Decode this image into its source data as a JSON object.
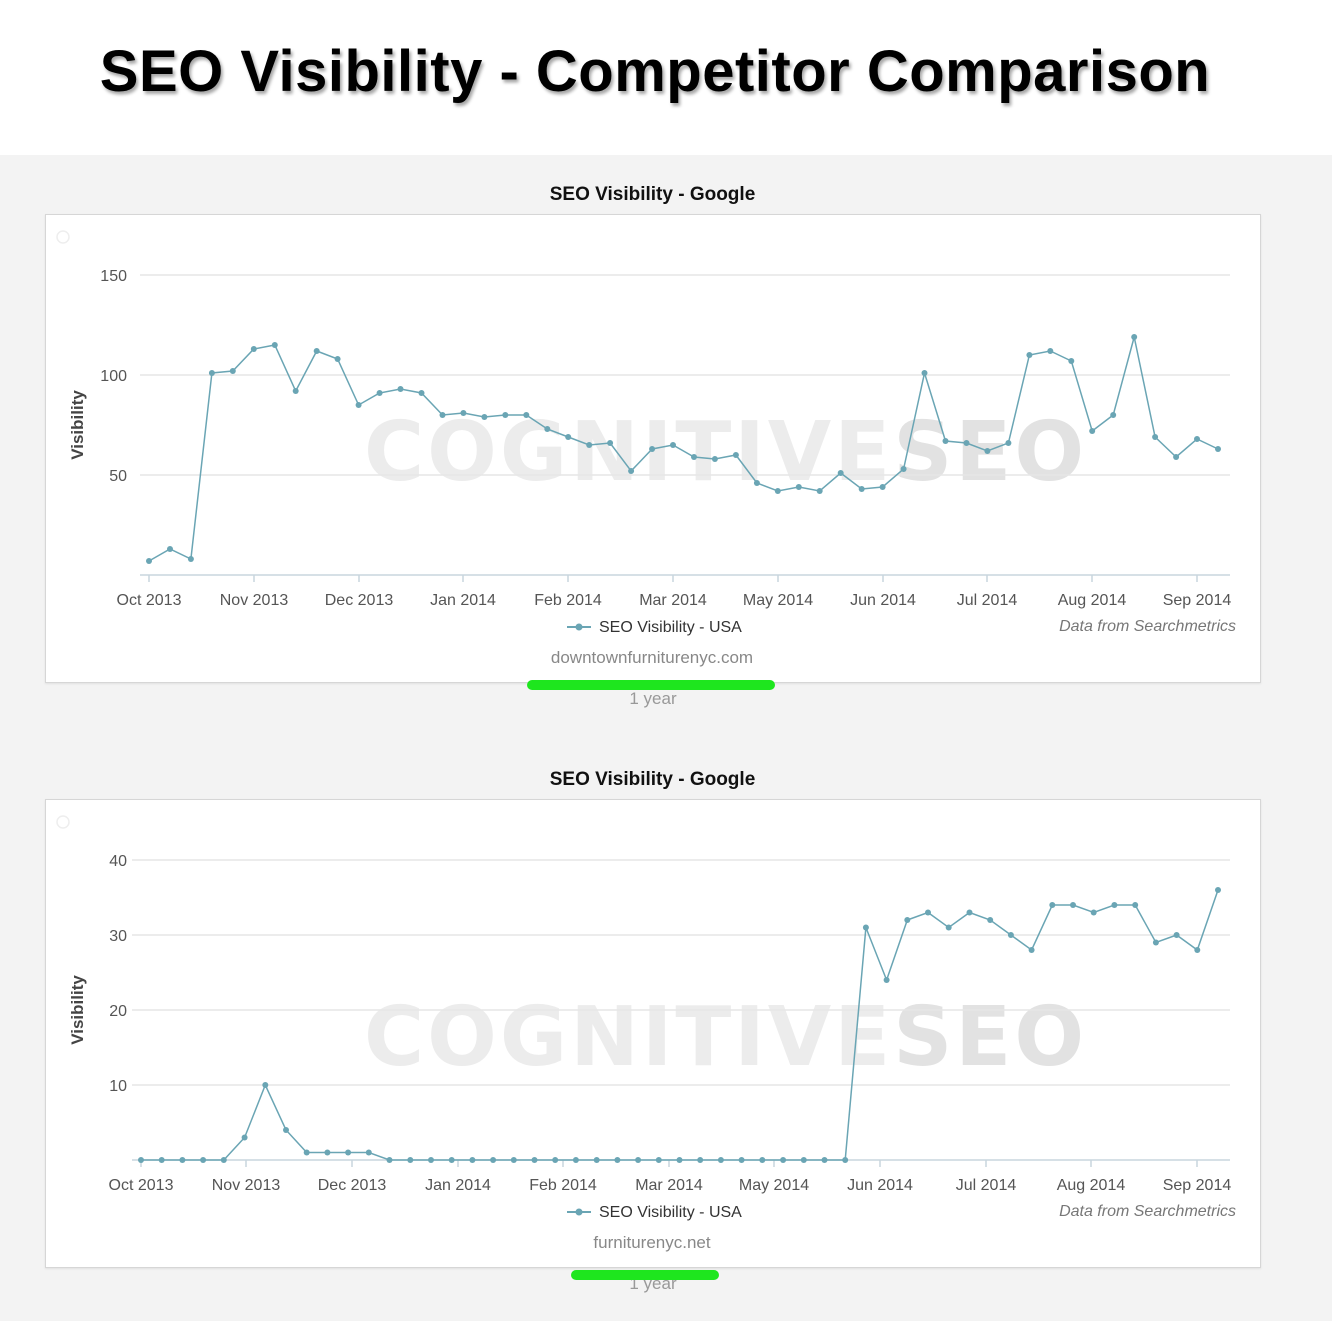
{
  "page": {
    "title": "SEO Visibility - Competitor Comparison"
  },
  "colors": {
    "series": "#6aa5b4",
    "gridline": "#e6e6e6",
    "range_bar": "#1ee61e"
  },
  "chart_data": [
    {
      "type": "line",
      "title": "SEO Visibility - Google",
      "ylabel": "Visibility",
      "xlabel": "",
      "ylim": [
        0,
        150
      ],
      "yticks": [
        50,
        100,
        150
      ],
      "grid": true,
      "legend": "bottom-center",
      "x_tick_labels": [
        "Oct 2013",
        "Nov 2013",
        "Dec 2013",
        "Jan 2014",
        "Feb 2014",
        "Mar 2014",
        "May 2014",
        "Jun 2014",
        "Jul 2014",
        "Aug 2014",
        "Sep 2014"
      ],
      "series": [
        {
          "name": "SEO Visibility - USA",
          "values": [
            7,
            13,
            8,
            101,
            102,
            113,
            115,
            92,
            112,
            108,
            85,
            91,
            93,
            91,
            80,
            81,
            79,
            80,
            80,
            73,
            69,
            65,
            66,
            52,
            63,
            65,
            59,
            58,
            60,
            46,
            42,
            44,
            42,
            51,
            43,
            44,
            53,
            101,
            67,
            66,
            62,
            66,
            110,
            112,
            107,
            72,
            80,
            119,
            69,
            59,
            68,
            63
          ]
        }
      ],
      "credit": "Data from Searchmetrics",
      "domain": "downtownfurniturenyc.com",
      "range": "1 year",
      "watermark": [
        "COGNITIVE",
        "SEO"
      ]
    },
    {
      "type": "line",
      "title": "SEO Visibility - Google",
      "ylabel": "Visibility",
      "xlabel": "",
      "ylim": [
        0,
        40
      ],
      "yticks": [
        10,
        20,
        30,
        40
      ],
      "grid": true,
      "legend": "bottom-center",
      "x_tick_labels": [
        "Oct 2013",
        "Nov 2013",
        "Dec 2013",
        "Jan 2014",
        "Feb 2014",
        "Mar 2014",
        "May 2014",
        "Jun 2014",
        "Jul 2014",
        "Aug 2014",
        "Sep 2014"
      ],
      "series": [
        {
          "name": "SEO Visibility - USA",
          "values": [
            0,
            0,
            0,
            0,
            0,
            3,
            10,
            4,
            1,
            1,
            1,
            1,
            0,
            0,
            0,
            0,
            0,
            0,
            0,
            0,
            0,
            0,
            0,
            0,
            0,
            0,
            0,
            0,
            0,
            0,
            0,
            0,
            0,
            0,
            0,
            31,
            24,
            32,
            33,
            31,
            33,
            32,
            30,
            28,
            34,
            34,
            33,
            34,
            34,
            29,
            30,
            28,
            36
          ]
        }
      ],
      "credit": "Data from Searchmetrics",
      "domain": "furniturenyc.net",
      "range": "1 year",
      "watermark": [
        "COGNITIVE",
        "SEO"
      ]
    }
  ]
}
